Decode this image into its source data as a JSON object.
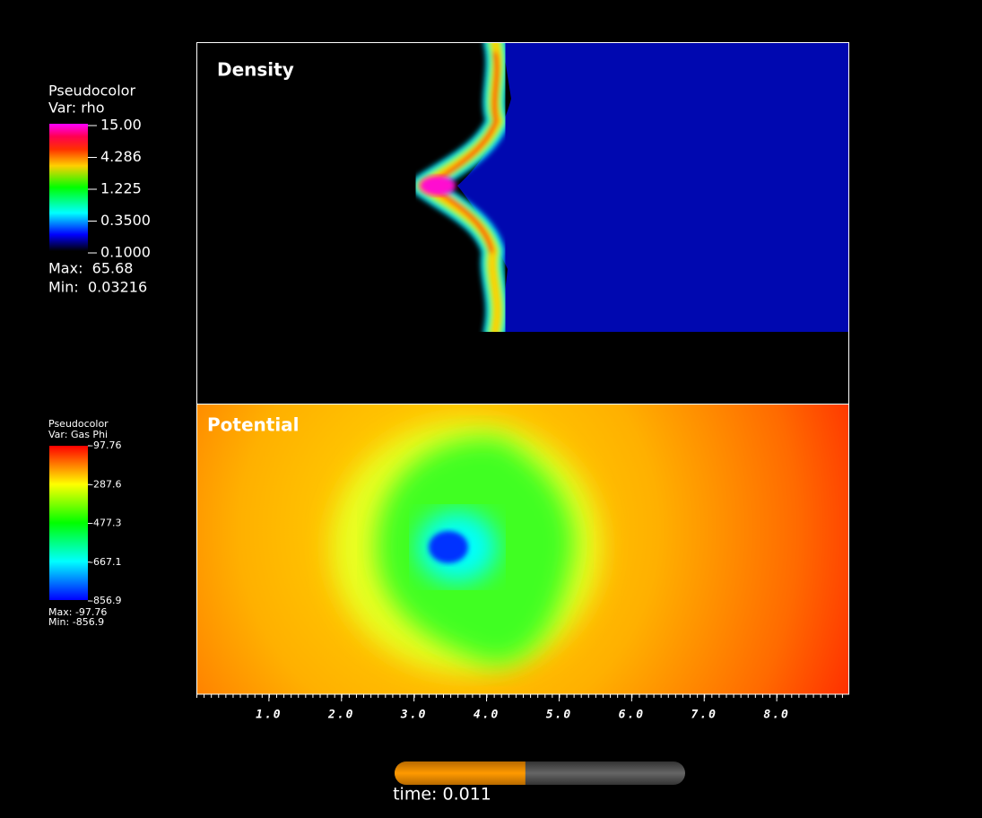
{
  "legends": [
    {
      "title": "Pseudocolor",
      "var": "Var: rho",
      "labels": [
        "15.00",
        "4.286",
        "1.225",
        "0.3500",
        "0.1000"
      ],
      "max": "Max:  65.68",
      "min": "Min:  0.03216"
    },
    {
      "title": "Pseudocolor",
      "var": "Var: Gas Phi",
      "labels": [
        "-97.76",
        "-287.6",
        "-477.3",
        "-667.1",
        "-856.9"
      ],
      "max": "Max: -97.76",
      "min": "Min: -856.9"
    }
  ],
  "plots": [
    {
      "label": "Density"
    },
    {
      "label": "Potential"
    }
  ],
  "x_axis": {
    "xlim": [
      0,
      9
    ],
    "xticks": [
      {
        "value": 1,
        "label": "1.0"
      },
      {
        "value": 2,
        "label": "2.0"
      },
      {
        "value": 3,
        "label": "3.0"
      },
      {
        "value": 4,
        "label": "4.0"
      },
      {
        "value": 5,
        "label": "5.0"
      },
      {
        "value": 6,
        "label": "6.0"
      },
      {
        "value": 7,
        "label": "7.0"
      },
      {
        "value": 8,
        "label": "8.0"
      }
    ]
  },
  "time": {
    "label": "time: 0.011",
    "progress": 0.45
  }
}
